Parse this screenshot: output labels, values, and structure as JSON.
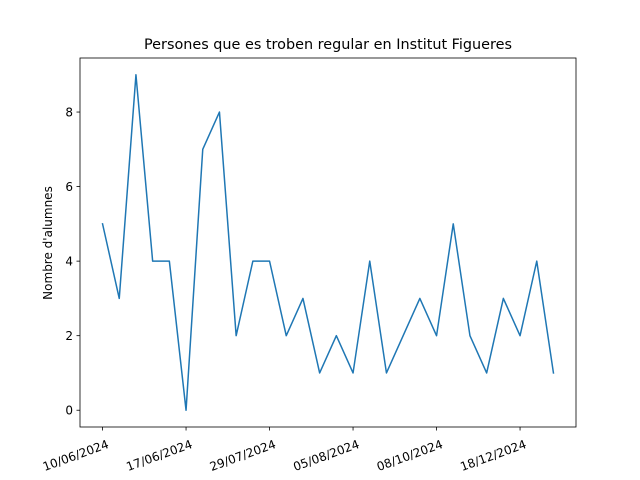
{
  "chart_data": {
    "type": "line",
    "title": "Persones que es troben regular en Institut Figueres",
    "xlabel": "",
    "ylabel": "Nombre d'alumnes",
    "x_tick_labels": [
      "10/06/2024",
      "17/06/2024",
      "29/07/2024",
      "05/08/2024",
      "08/10/2024",
      "18/12/2024"
    ],
    "x_tick_positions": [
      0,
      5,
      10,
      15,
      20,
      25
    ],
    "y_ticks": [
      0,
      2,
      4,
      6,
      8
    ],
    "ylim": [
      -0.45,
      9.45
    ],
    "xlim": [
      -1.35,
      28.35
    ],
    "grid": false,
    "series": [
      {
        "color": "#1f77b4",
        "values": [
          5,
          3,
          9,
          4,
          4,
          0,
          7,
          8,
          2,
          4,
          4,
          2,
          3,
          1,
          2,
          1,
          4,
          1,
          2,
          3,
          2,
          5,
          2,
          1,
          3,
          2,
          4,
          1
        ]
      }
    ]
  }
}
